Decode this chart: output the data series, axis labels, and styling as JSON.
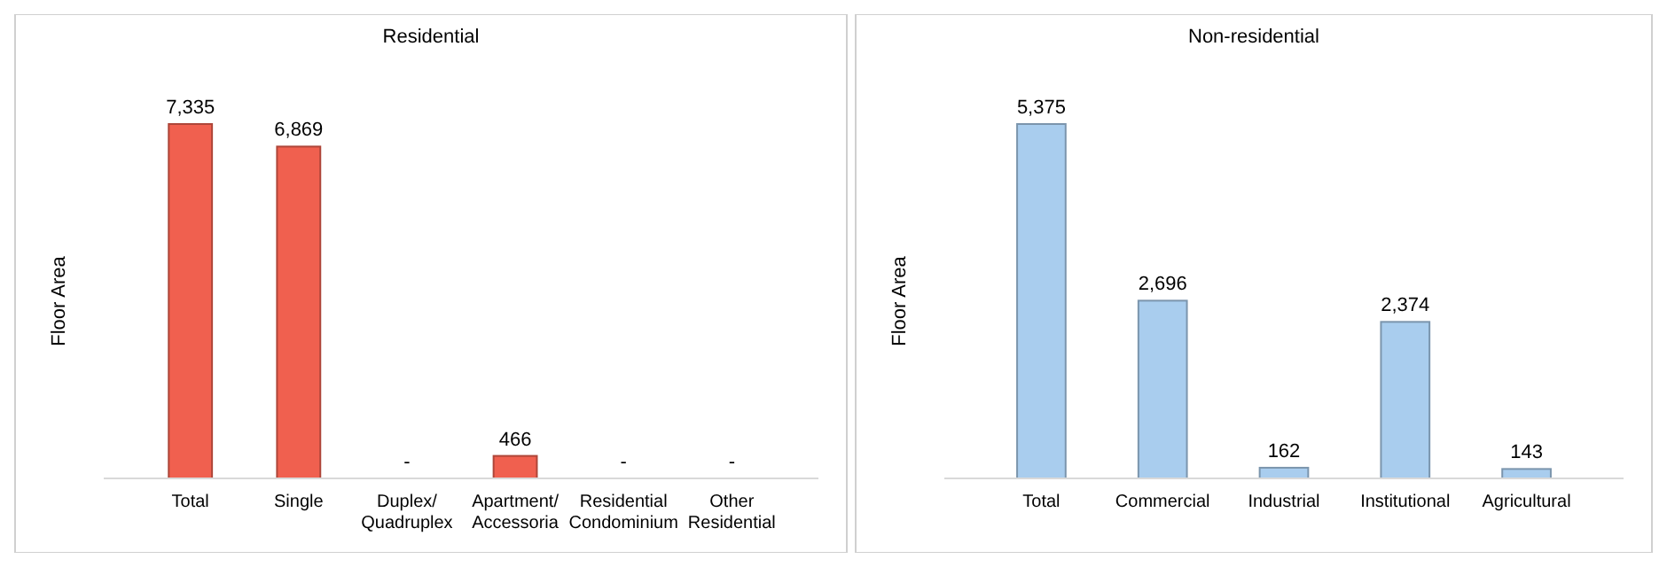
{
  "chart_data": [
    {
      "type": "bar",
      "title": "Residential",
      "ylabel": "Floor Area",
      "categories": [
        "Total",
        "Single",
        "Duplex/\nQuadruplex",
        "Apartment/\nAccessoria",
        "Residential\nCondominium",
        "Other\nResidential"
      ],
      "values": [
        7335,
        6869,
        0,
        466,
        0,
        0
      ],
      "value_labels": [
        "7,335",
        "6,869",
        "-",
        "466",
        "-",
        "-"
      ],
      "color": "#f0604f",
      "grid": false
    },
    {
      "type": "bar",
      "title": "Non-residential",
      "ylabel": "Floor Area",
      "categories": [
        "Total",
        "Commercial",
        "Industrial",
        "Institutional",
        "Agricultural"
      ],
      "values": [
        5375,
        2696,
        162,
        2374,
        143
      ],
      "value_labels": [
        "5,375",
        "2,696",
        "162",
        "2,374",
        "143"
      ],
      "color": "#a9cdee",
      "grid": false
    }
  ]
}
